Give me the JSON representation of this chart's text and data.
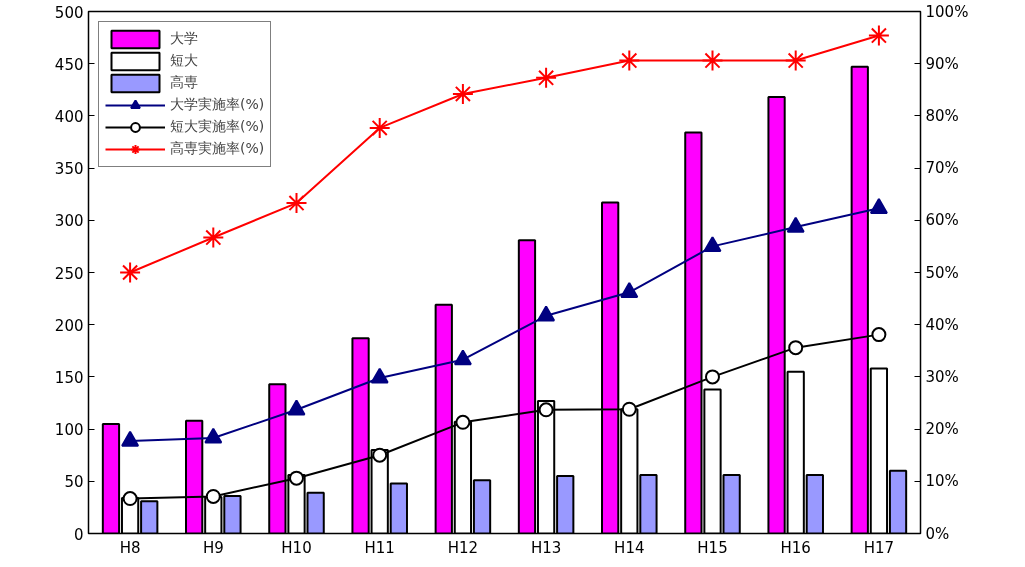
{
  "chart_data": {
    "type": "bar",
    "categories": [
      "H8",
      "H9",
      "H10",
      "H11",
      "H12",
      "H13",
      "H14",
      "H15",
      "H16",
      "H17"
    ],
    "series": [
      {
        "name": "大学",
        "color": "#ff00ff",
        "values": [
          105,
          108,
          143,
          187,
          219,
          281,
          317,
          384,
          418,
          447
        ]
      },
      {
        "name": "短大",
        "color": "#ffffff",
        "values": [
          34,
          35,
          56,
          80,
          107,
          127,
          119,
          138,
          155,
          158
        ]
      },
      {
        "name": "高専",
        "color": "#9999ff",
        "values": [
          31,
          36,
          39,
          48,
          51,
          55,
          56,
          56,
          56,
          60
        ]
      },
      {
        "name": "大学実施率(%)",
        "type": "line",
        "axis": "y2",
        "marker": "triangle",
        "color": "#000080",
        "values": [
          17.7,
          18.3,
          23.7,
          29.8,
          33.3,
          41.7,
          46.2,
          55,
          58.7,
          62.3
        ]
      },
      {
        "name": "短大実施率(%)",
        "type": "line",
        "axis": "y2",
        "marker": "circle",
        "color": "#000000",
        "values": [
          6.7,
          7.1,
          10.6,
          15,
          21.3,
          23.7,
          23.8,
          30,
          35.6,
          38.1
        ]
      },
      {
        "name": "高専実施率(%)",
        "type": "line",
        "axis": "y2",
        "marker": "cross",
        "color": "#ff0000",
        "values": [
          50,
          56.7,
          63.3,
          77.7,
          84.2,
          87.3,
          90.6,
          90.6,
          90.6,
          95.4
        ]
      }
    ],
    "ylim": [
      0,
      500
    ],
    "yticks": [
      0,
      50,
      100,
      150,
      200,
      250,
      300,
      350,
      400,
      450,
      500
    ],
    "y2lim": [
      0,
      100
    ],
    "y2ticks": [
      {
        "value": 0,
        "label": "0%"
      },
      {
        "value": 10,
        "label": "10%"
      },
      {
        "value": 20,
        "label": "20%"
      },
      {
        "value": 30,
        "label": "30%"
      },
      {
        "value": 40,
        "label": "40%"
      },
      {
        "value": 50,
        "label": "50%"
      },
      {
        "value": 60,
        "label": "60%"
      },
      {
        "value": 70,
        "label": "70%"
      },
      {
        "value": 80,
        "label": "80%"
      },
      {
        "value": 90,
        "label": "90%"
      },
      {
        "value": 100,
        "label": "100%"
      }
    ],
    "legend": "top left",
    "grid": false
  }
}
